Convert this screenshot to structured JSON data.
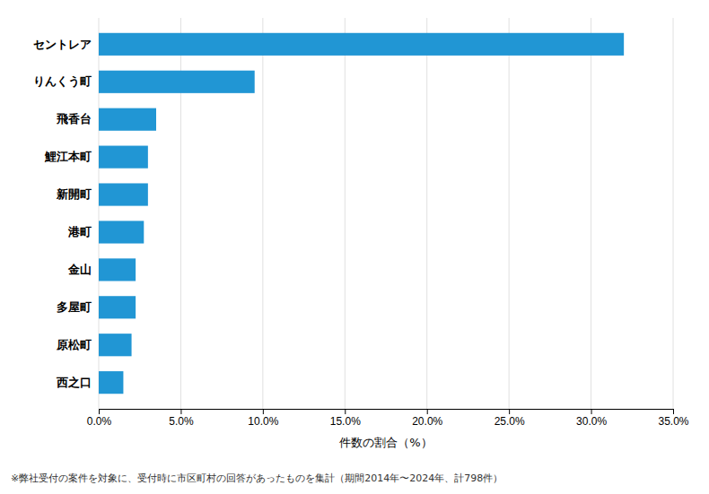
{
  "chart_data": {
    "type": "bar",
    "orientation": "horizontal",
    "categories": [
      "西之口",
      "原松町",
      "多屋町",
      "金山",
      "港町",
      "新開町",
      "鯉江本町",
      "飛香台",
      "りんくう町",
      "セントレア"
    ],
    "values": [
      1.5,
      2.0,
      2.25,
      2.25,
      2.75,
      3.0,
      3.0,
      3.5,
      9.5,
      32.0
    ],
    "color": "#2196d4",
    "xlabel": "件数の割合（%）",
    "xlim": [
      0,
      35.0
    ],
    "xticks": [
      {
        "value": 0,
        "label": "0.0%"
      },
      {
        "value": 5,
        "label": "5.0%"
      },
      {
        "value": 10,
        "label": "10.0%"
      },
      {
        "value": 15,
        "label": "15.0%"
      },
      {
        "value": 20,
        "label": "20.0%"
      },
      {
        "value": 25,
        "label": "25.0%"
      },
      {
        "value": 30,
        "label": "30.0%"
      },
      {
        "value": 35,
        "label": "35.0%"
      }
    ],
    "grid": true,
    "annotations": [
      "※弊社受付の案件を対象に、受付時に市区町村の回答があったものを集計（期間2014年〜2024年、計798件）"
    ]
  }
}
